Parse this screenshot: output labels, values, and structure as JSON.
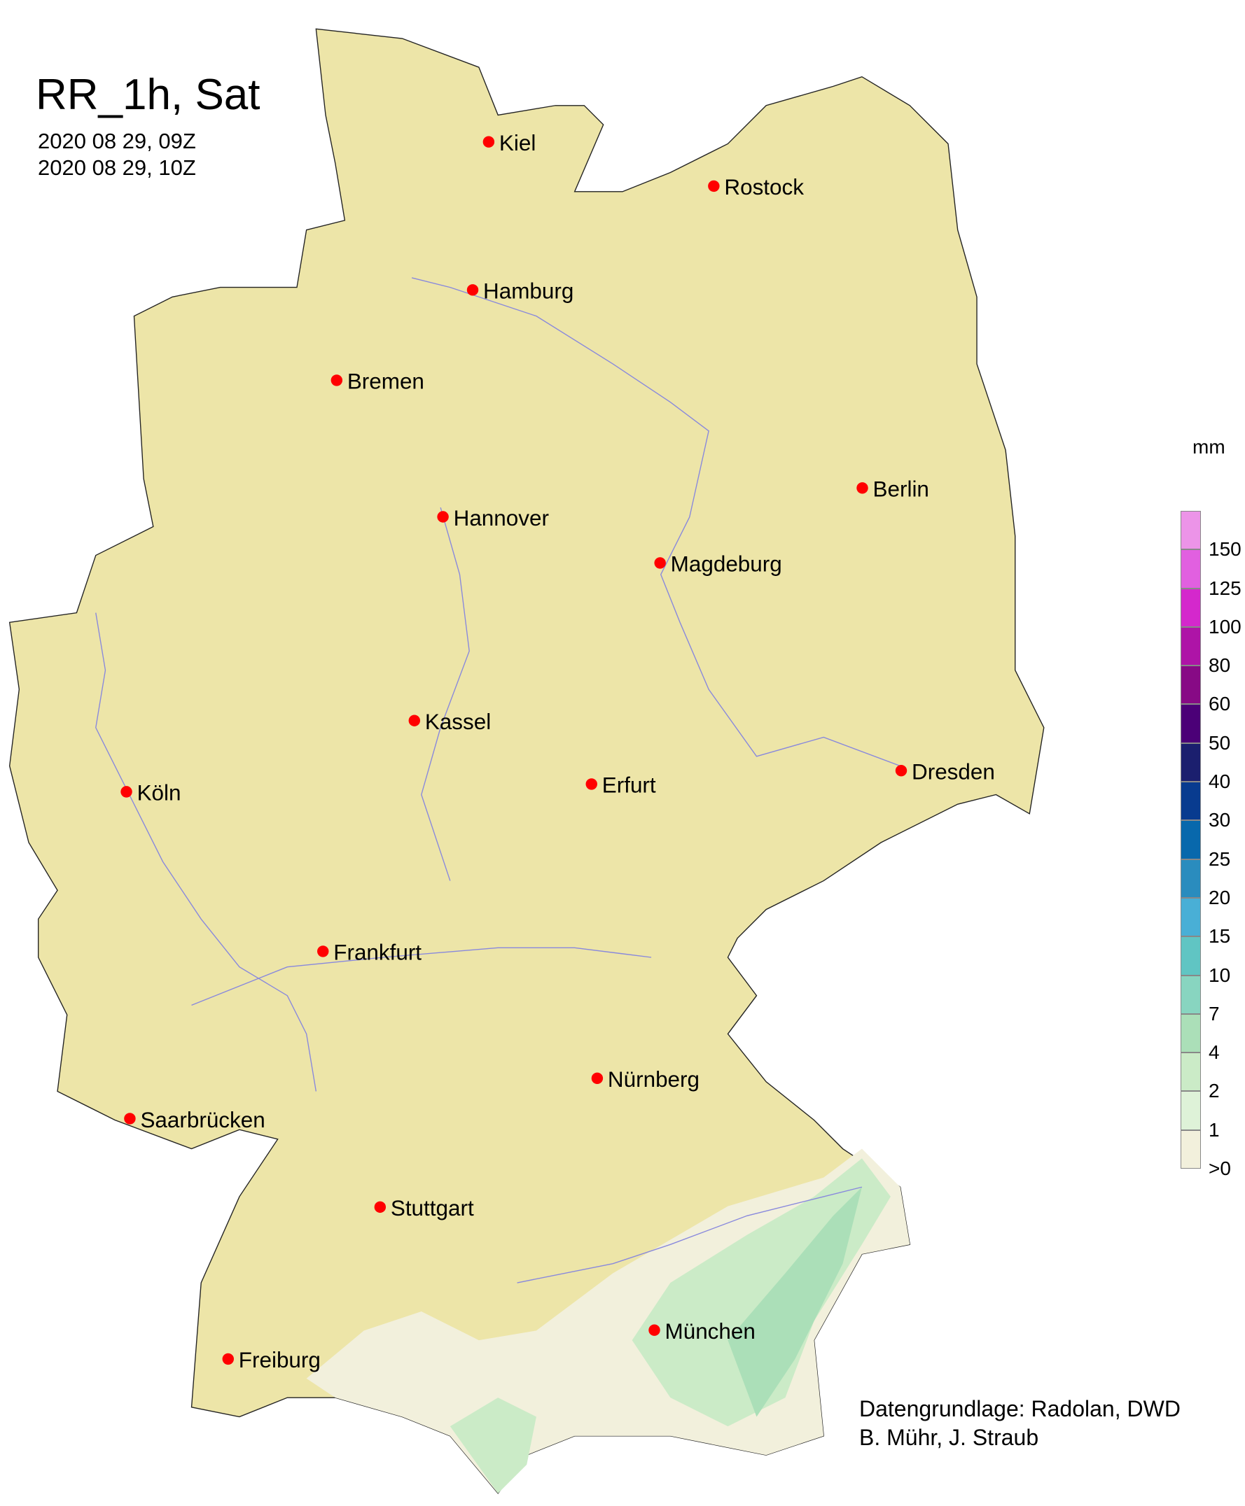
{
  "title": "RR_1h, Sat",
  "time_start": "2020 08 29, 09Z",
  "time_end": "2020 08 29, 10Z",
  "credit_line1": "Datengrundlage: Radolan, DWD",
  "credit_line2": "B. Mühr, J. Straub",
  "legend": {
    "unit": "mm",
    "labels": [
      ">0",
      "1",
      "2",
      "4",
      "7",
      "10",
      "15",
      "20",
      "25",
      "30",
      "40",
      "50",
      "60",
      "80",
      "100",
      "125",
      "150"
    ],
    "colors": [
      "#f2f0dc",
      "#def2d8",
      "#cbebc7",
      "#abdfb8",
      "#88d5c0",
      "#60c5c3",
      "#49afd6",
      "#2a8cbe",
      "#0868ac",
      "#083b8f",
      "#1b1f6e",
      "#4b0077",
      "#870a85",
      "#ae14a7",
      "#d428cc",
      "#e160e0",
      "#ec94e8"
    ]
  },
  "colors": {
    "land": "#ede5a8",
    "border": "#222222",
    "river": "#8888dd",
    "city_dot": "#ff0000"
  },
  "cities": [
    {
      "name": "Kiel",
      "lon": 10.13,
      "lat": 54.32
    },
    {
      "name": "Rostock",
      "lon": 12.1,
      "lat": 54.09
    },
    {
      "name": "Hamburg",
      "lon": 9.99,
      "lat": 53.55
    },
    {
      "name": "Bremen",
      "lon": 8.8,
      "lat": 53.08
    },
    {
      "name": "Berlin",
      "lon": 13.4,
      "lat": 52.52
    },
    {
      "name": "Hannover",
      "lon": 9.73,
      "lat": 52.37
    },
    {
      "name": "Magdeburg",
      "lon": 11.63,
      "lat": 52.13
    },
    {
      "name": "Kassel",
      "lon": 9.48,
      "lat": 51.31
    },
    {
      "name": "Dresden",
      "lon": 13.74,
      "lat": 51.05
    },
    {
      "name": "Köln",
      "lon": 6.96,
      "lat": 50.94
    },
    {
      "name": "Erfurt",
      "lon": 11.03,
      "lat": 50.98
    },
    {
      "name": "Frankfurt",
      "lon": 8.68,
      "lat": 50.11
    },
    {
      "name": "Nürnberg",
      "lon": 11.08,
      "lat": 49.45
    },
    {
      "name": "Saarbrücken",
      "lon": 6.99,
      "lat": 49.24
    },
    {
      "name": "Stuttgart",
      "lon": 9.18,
      "lat": 48.78
    },
    {
      "name": "München",
      "lon": 11.58,
      "lat": 48.14
    },
    {
      "name": "Freiburg",
      "lon": 7.85,
      "lat": 47.99
    }
  ]
}
